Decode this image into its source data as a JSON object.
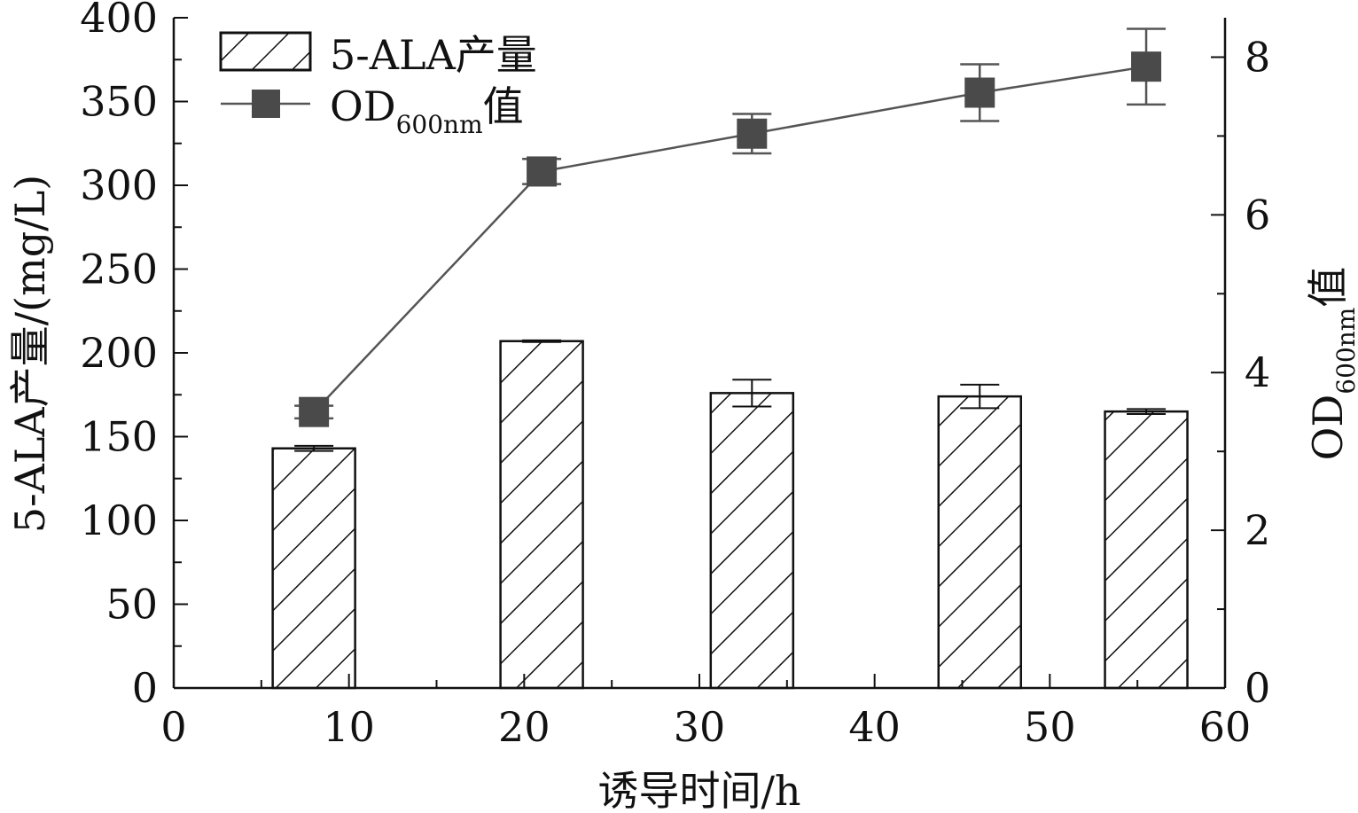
{
  "chart_data": {
    "type": "bar",
    "title": "",
    "xlabel": "诱导时间/h",
    "ylabel_left": "5-ALA产量/(mg/L)",
    "ylabel_right": {
      "main": "OD",
      "sub": "600nm",
      "suffix": "值"
    },
    "xlim": [
      0,
      60
    ],
    "ylim_left": [
      0,
      400
    ],
    "ylim_right": [
      0,
      8.5
    ],
    "x_ticks": [
      "0",
      "10",
      "20",
      "30",
      "40",
      "50",
      "60"
    ],
    "y_left_ticks": [
      "0",
      "50",
      "100",
      "150",
      "200",
      "250",
      "300",
      "350",
      "400"
    ],
    "y_right_ticks": [
      "0",
      "2",
      "4",
      "6",
      "8"
    ],
    "grid": false,
    "legend_position": "top-left",
    "series": [
      {
        "name": "5-ALA产量",
        "type": "bar",
        "axis": "left",
        "pattern": "diagonal-hatch",
        "x": [
          8,
          21,
          33,
          46,
          55.5
        ],
        "values": [
          143,
          207,
          176,
          174,
          165
        ],
        "error": [
          1.5,
          0.5,
          8,
          7,
          1.5
        ]
      },
      {
        "name": "OD600nm值",
        "legend_label": {
          "main": "OD",
          "sub": "600nm",
          "suffix": "值"
        },
        "type": "line",
        "axis": "right",
        "marker": "square",
        "color": "#555555",
        "x": [
          8,
          21,
          33,
          46,
          55.5
        ],
        "values": [
          3.5,
          6.55,
          7.03,
          7.55,
          7.88
        ],
        "error": [
          0.08,
          0.16,
          0.25,
          0.36,
          0.48
        ]
      }
    ]
  }
}
